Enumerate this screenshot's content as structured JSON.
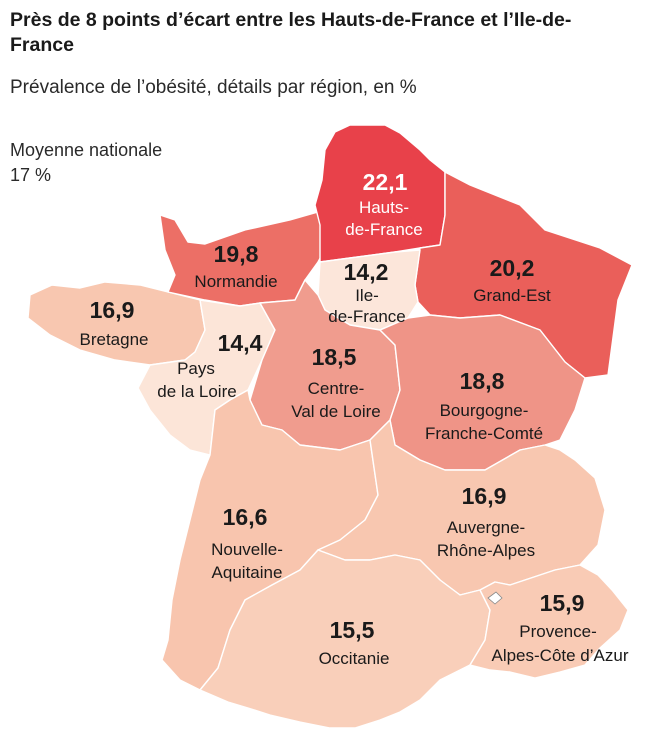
{
  "title": "Près de 8 points d’écart entre les Hauts-de-France et l’Ile-de-France",
  "subtitle": "Prévalence de l’obésité, détails par région, en %",
  "national_average": {
    "label": "Moyenne nationale",
    "value_text": "17 %",
    "value": 17
  },
  "colors": {
    "darkest": "#e8414a",
    "dark": "#eb6b63",
    "medium_dark": "#ee8a80",
    "medium": "#f3a79a",
    "light": "#f8c9b4",
    "lightest": "#fce6da"
  },
  "regions": {
    "hauts_de_france": {
      "value_text": "22,1",
      "value": 22.1,
      "name_lines": [
        "Hauts-",
        "de-France"
      ],
      "color": "#e8414a"
    },
    "normandie": {
      "value_text": "19,8",
      "value": 19.8,
      "name_lines": [
        "Normandie"
      ],
      "color": "#ec6f66"
    },
    "ile_de_france": {
      "value_text": "14,2",
      "value": 14.2,
      "name_lines": [
        "Ile-",
        "de-France"
      ],
      "color": "#fce6da"
    },
    "grand_est": {
      "value_text": "20,2",
      "value": 20.2,
      "name_lines": [
        "Grand-Est"
      ],
      "color": "#ea5f5a"
    },
    "bretagne": {
      "value_text": "16,9",
      "value": 16.9,
      "name_lines": [
        "Bretagne"
      ],
      "color": "#f8c7b0"
    },
    "pays_de_la_loire": {
      "value_text": "14,4",
      "value": 14.4,
      "name_lines": [
        "Pays",
        "de la Loire"
      ],
      "color": "#fce5d8"
    },
    "centre_val_de_loire": {
      "value_text": "18,5",
      "value": 18.5,
      "name_lines": [
        "Centre-",
        "Val de Loire"
      ],
      "color": "#f09c8e"
    },
    "bourgogne_franche_comte": {
      "value_text": "18,8",
      "value": 18.8,
      "name_lines": [
        "Bourgogne-",
        "Franche-Comté"
      ],
      "color": "#ef9487"
    },
    "nouvelle_aquitaine": {
      "value_text": "16,6",
      "value": 16.6,
      "name_lines": [
        "Nouvelle-",
        "Aquitaine"
      ],
      "color": "#f8c5ae"
    },
    "auvergne_rhone_alpes": {
      "value_text": "16,9",
      "value": 16.9,
      "name_lines": [
        "Auvergne-",
        "Rhône-Alpes"
      ],
      "color": "#f8c7b0"
    },
    "occitanie": {
      "value_text": "15,5",
      "value": 15.5,
      "name_lines": [
        "Occitanie"
      ],
      "color": "#f9cfba"
    },
    "provence_alpes_cote_dazur": {
      "value_text": "15,9",
      "value": 15.9,
      "name_lines": [
        "Provence-",
        "Alpes-Côte d’Azur"
      ],
      "color": "#f9cbb5"
    }
  }
}
